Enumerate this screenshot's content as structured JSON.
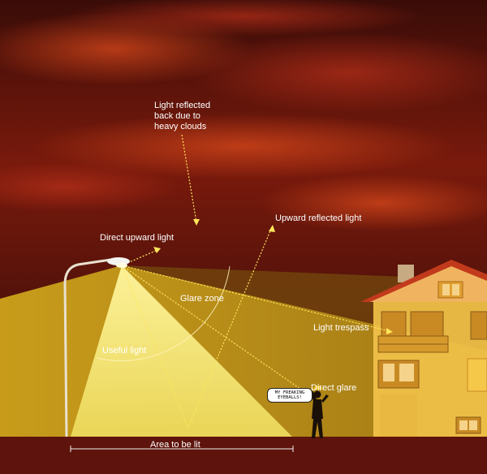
{
  "labels": {
    "clouds_line1": "Light reflected",
    "clouds_line2": "back due to",
    "clouds_line3": "heavy clouds",
    "upward_reflected": "Upward reflected light",
    "direct_upward": "Direct upward light",
    "glare_zone": "Glare zone",
    "light_trespass": "Light trespass",
    "useful_light": "Useful light",
    "direct_glare": "Direct glare",
    "area_to_be_lit": "Area to be lit",
    "speech_line1": "MY FREAKING",
    "speech_line2": "EYEBALLS!"
  },
  "colors": {
    "sky_dark": "#2a0a08",
    "sky_red": "#8a1e0c",
    "ground": "#5e140c",
    "light_cone": "#f3e36a",
    "glare_band": "#c9a21c",
    "house_wall": "#f2c24a",
    "roof": "#c23a1c",
    "annotation": "#ffe65a"
  }
}
